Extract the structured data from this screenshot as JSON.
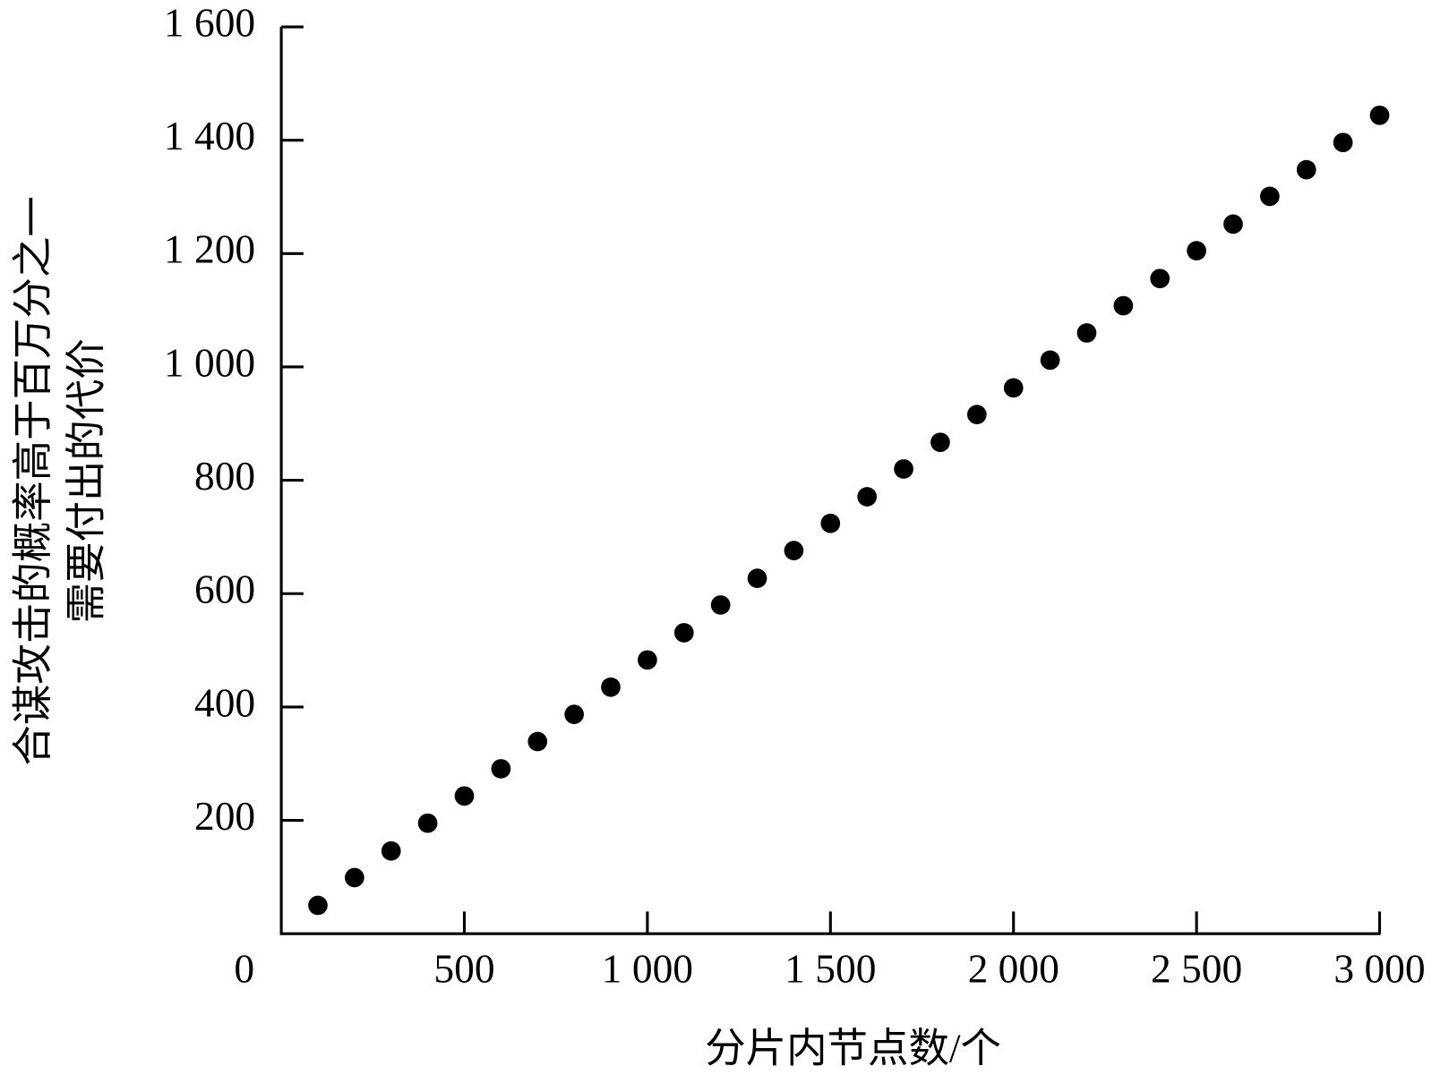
{
  "chart_data": {
    "type": "scatter",
    "xlabel": "分片内节点数/个",
    "ylabel": [
      "合谋攻击的概率高于百万分之一",
      "需要付出的代价"
    ],
    "x": [
      100,
      200,
      300,
      400,
      500,
      600,
      700,
      800,
      900,
      1000,
      1100,
      1200,
      1300,
      1400,
      1500,
      1600,
      1700,
      1800,
      1900,
      2000,
      2100,
      2200,
      2300,
      2400,
      2500,
      2600,
      2700,
      2800,
      2900,
      3000
    ],
    "values": [
      50,
      99,
      146,
      195,
      243,
      291,
      339,
      387,
      435,
      483,
      531,
      580,
      627,
      676,
      724,
      771,
      820,
      867,
      916,
      963,
      1012,
      1060,
      1108,
      1156,
      1205,
      1252,
      1301,
      1348,
      1396,
      1444
    ],
    "color": "#000000",
    "xlim": [
      0,
      3000
    ],
    "ylim": [
      0,
      1600
    ],
    "xticks": [
      0,
      500,
      {
        "value": 1000,
        "label": "1 000"
      },
      {
        "value": 1500,
        "label": "1 500"
      },
      {
        "value": 2000,
        "label": "2 000"
      },
      {
        "value": 2500,
        "label": "2 500"
      },
      {
        "value": 3000,
        "label": "3 000"
      }
    ],
    "yticks": [
      200,
      400,
      600,
      800,
      {
        "value": 1000,
        "label": "1 000"
      },
      {
        "value": 1200,
        "label": "1 200"
      },
      {
        "value": 1400,
        "label": "1 400"
      },
      {
        "value": 1600,
        "label": "1 600"
      }
    ],
    "grid": false
  }
}
